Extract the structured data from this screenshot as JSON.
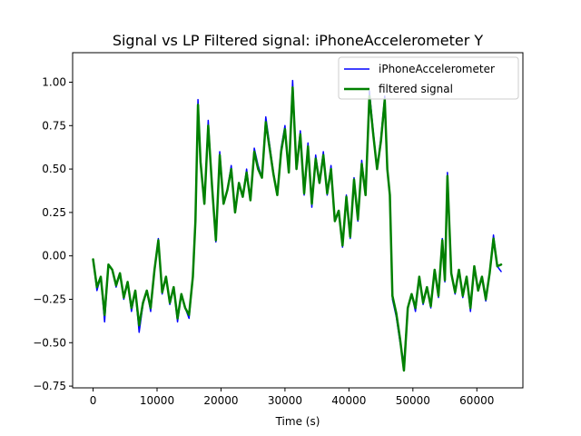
{
  "chart_data": {
    "type": "line",
    "title": "Signal vs LP Filtered signal: iPhoneAccelerometer Y",
    "xlabel": "Time (s)",
    "ylabel": "",
    "xlim": [
      -3200,
      67200
    ],
    "ylim": [
      -0.76,
      1.17
    ],
    "xticks": [
      0,
      10000,
      20000,
      30000,
      40000,
      50000,
      60000
    ],
    "xtick_labels": [
      "0",
      "10000",
      "20000",
      "30000",
      "40000",
      "50000",
      "60000"
    ],
    "yticks": [
      -0.75,
      -0.5,
      -0.25,
      0.0,
      0.25,
      0.5,
      0.75,
      1.0
    ],
    "ytick_labels": [
      "−0.75",
      "−0.50",
      "−0.25",
      "0.00",
      "0.25",
      "0.50",
      "0.75",
      "1.00"
    ],
    "grid": false,
    "legend_position": "top-right",
    "x": [
      0,
      600,
      1200,
      1800,
      2400,
      3000,
      3600,
      4200,
      4800,
      5400,
      6000,
      6600,
      7200,
      7800,
      8400,
      9000,
      9600,
      10200,
      10800,
      11400,
      12000,
      12600,
      13200,
      13800,
      14400,
      15000,
      15600,
      16000,
      16400,
      16800,
      17400,
      18000,
      18600,
      19200,
      19800,
      20400,
      21000,
      21600,
      22200,
      22800,
      23400,
      24000,
      24600,
      25200,
      25800,
      26400,
      27000,
      27600,
      28200,
      28800,
      29400,
      30000,
      30600,
      31200,
      31800,
      32400,
      33000,
      33600,
      34200,
      34800,
      35400,
      36000,
      36600,
      37200,
      37800,
      38400,
      39000,
      39600,
      40200,
      40800,
      41400,
      42000,
      42600,
      43200,
      43800,
      44400,
      45000,
      45600,
      46000,
      46400,
      46800,
      47400,
      48000,
      48600,
      49200,
      49800,
      50400,
      51000,
      51600,
      52200,
      52800,
      53400,
      54000,
      54600,
      55000,
      55400,
      56000,
      56600,
      57200,
      57800,
      58400,
      59000,
      59600,
      60200,
      60800,
      61400,
      62000,
      62600,
      63200,
      63800
    ],
    "series": [
      {
        "name": "iPhoneAccelerometer",
        "color": "#0000ff",
        "line_width": 1.5,
        "values": [
          -0.02,
          -0.2,
          -0.12,
          -0.38,
          -0.05,
          -0.08,
          -0.18,
          -0.1,
          -0.25,
          -0.15,
          -0.32,
          -0.2,
          -0.44,
          -0.28,
          -0.2,
          -0.32,
          -0.08,
          0.1,
          -0.22,
          -0.12,
          -0.28,
          -0.18,
          -0.38,
          -0.22,
          -0.3,
          -0.36,
          -0.12,
          0.22,
          0.9,
          0.55,
          0.3,
          0.78,
          0.4,
          0.08,
          0.6,
          0.3,
          0.38,
          0.52,
          0.25,
          0.42,
          0.34,
          0.5,
          0.32,
          0.62,
          0.52,
          0.45,
          0.8,
          0.64,
          0.48,
          0.35,
          0.62,
          0.75,
          0.48,
          1.01,
          0.5,
          0.72,
          0.35,
          0.65,
          0.28,
          0.58,
          0.42,
          0.6,
          0.35,
          0.52,
          0.2,
          0.25,
          0.05,
          0.35,
          0.1,
          0.45,
          0.2,
          0.55,
          0.35,
          0.95,
          0.72,
          0.5,
          0.68,
          0.92,
          0.5,
          0.35,
          -0.25,
          -0.35,
          -0.5,
          -0.62,
          -0.3,
          -0.22,
          -0.32,
          -0.12,
          -0.28,
          -0.18,
          -0.3,
          -0.08,
          -0.24,
          0.1,
          -0.15,
          0.48,
          -0.1,
          -0.22,
          -0.08,
          -0.24,
          -0.12,
          -0.32,
          -0.06,
          -0.2,
          -0.12,
          -0.26,
          -0.1,
          0.12,
          -0.06,
          -0.09
        ]
      },
      {
        "name": "filtered signal",
        "color": "#008000",
        "line_width": 2.5,
        "values": [
          -0.02,
          -0.18,
          -0.12,
          -0.34,
          -0.05,
          -0.08,
          -0.17,
          -0.1,
          -0.24,
          -0.15,
          -0.3,
          -0.2,
          -0.4,
          -0.27,
          -0.2,
          -0.3,
          -0.08,
          0.09,
          -0.21,
          -0.12,
          -0.27,
          -0.18,
          -0.36,
          -0.22,
          -0.3,
          -0.34,
          -0.12,
          0.2,
          0.87,
          0.54,
          0.3,
          0.75,
          0.4,
          0.09,
          0.58,
          0.3,
          0.38,
          0.5,
          0.25,
          0.42,
          0.34,
          0.48,
          0.32,
          0.6,
          0.5,
          0.45,
          0.77,
          0.62,
          0.47,
          0.35,
          0.6,
          0.73,
          0.48,
          0.97,
          0.5,
          0.7,
          0.36,
          0.63,
          0.3,
          0.56,
          0.42,
          0.58,
          0.36,
          0.5,
          0.2,
          0.26,
          0.06,
          0.34,
          0.11,
          0.44,
          0.21,
          0.53,
          0.35,
          0.92,
          0.7,
          0.5,
          0.66,
          0.9,
          0.5,
          0.35,
          -0.23,
          -0.33,
          -0.48,
          -0.66,
          -0.3,
          -0.22,
          -0.3,
          -0.12,
          -0.27,
          -0.18,
          -0.29,
          -0.08,
          -0.23,
          0.09,
          -0.14,
          0.46,
          -0.1,
          -0.21,
          -0.08,
          -0.23,
          -0.12,
          -0.3,
          -0.06,
          -0.2,
          -0.12,
          -0.25,
          -0.1,
          0.1,
          -0.06,
          -0.05
        ]
      }
    ]
  }
}
